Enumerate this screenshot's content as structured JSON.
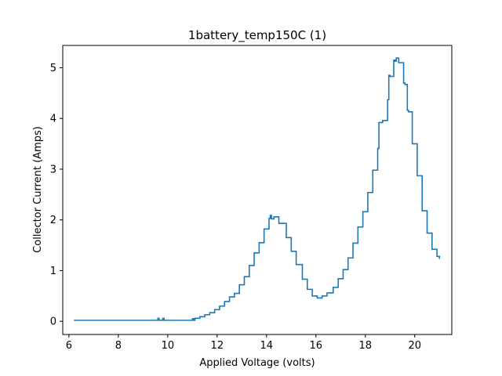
{
  "chart_data": {
    "type": "line",
    "title": "1battery_temp150C (1)",
    "xlabel": "Applied Voltage (volts)",
    "ylabel": "Collector Current (Amps)",
    "xlim": [
      5.75,
      21.5
    ],
    "ylim": [
      -0.26,
      5.44
    ],
    "grid": false,
    "step": "post",
    "line_color": "#1f77b4",
    "x_ticks": [
      6,
      8,
      10,
      12,
      14,
      16,
      18,
      20
    ],
    "y_ticks": [
      0,
      1,
      2,
      3,
      4,
      5
    ],
    "series": [
      {
        "x": [
          6.2,
          9.6,
          9.65,
          9.7,
          9.8,
          9.85,
          9.9,
          11.0,
          11.05,
          11.1,
          11.3,
          11.5,
          11.7,
          11.9,
          12.1,
          12.3,
          12.5,
          12.7,
          12.9,
          13.1,
          13.3,
          13.5,
          13.7,
          13.9,
          14.1,
          14.15,
          14.2,
          14.3,
          14.5,
          14.8,
          15.0,
          15.2,
          15.45,
          15.65,
          15.85,
          16.05,
          16.25,
          16.45,
          16.7,
          16.9,
          17.1,
          17.3,
          17.5,
          17.7,
          17.9,
          18.1,
          18.3,
          18.5,
          18.55,
          18.7,
          18.9,
          18.95,
          19.0,
          19.15,
          19.2,
          19.25,
          19.35,
          19.55,
          19.6,
          19.7,
          19.75,
          19.9,
          20.1,
          20.3,
          20.5,
          20.7,
          20.9,
          21.0
        ],
        "y": [
          0.02,
          0.06,
          0.02,
          0.02,
          0.06,
          0.02,
          0.02,
          0.05,
          0.02,
          0.06,
          0.09,
          0.13,
          0.17,
          0.23,
          0.3,
          0.39,
          0.48,
          0.55,
          0.72,
          0.88,
          1.1,
          1.35,
          1.55,
          1.82,
          2.03,
          2.09,
          2.02,
          2.06,
          1.93,
          1.65,
          1.38,
          1.12,
          0.83,
          0.63,
          0.5,
          0.46,
          0.5,
          0.56,
          0.67,
          0.84,
          1.02,
          1.25,
          1.54,
          1.86,
          2.16,
          2.54,
          2.98,
          3.41,
          3.92,
          3.96,
          4.37,
          4.85,
          4.83,
          5.15,
          5.13,
          5.19,
          5.1,
          4.7,
          4.67,
          4.16,
          4.13,
          3.5,
          2.87,
          2.18,
          1.74,
          1.42,
          1.28,
          1.23
        ]
      }
    ]
  }
}
